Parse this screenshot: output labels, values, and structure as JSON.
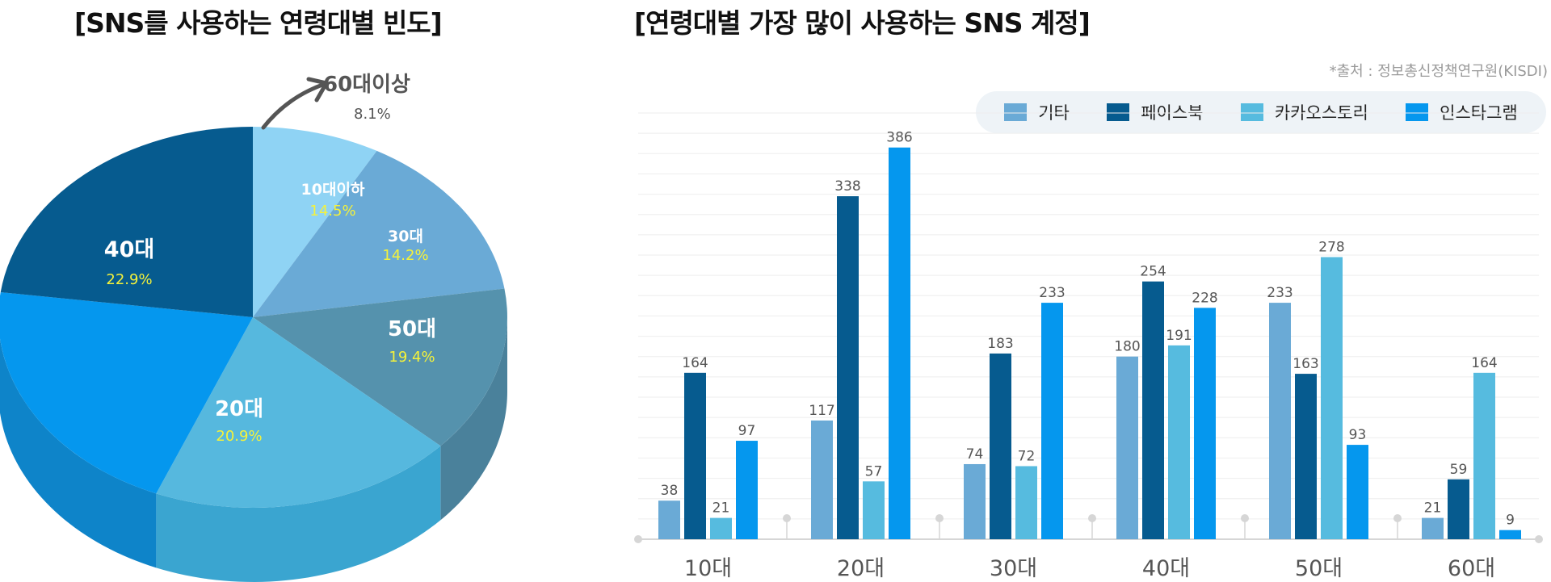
{
  "pie_title": "[SNS를 사용하는 연령대별 빈도]",
  "bar_title": "[연령대별 가장 많이 사용하는 SNS 계정]",
  "source": "*출처 : 정보총신정책연구원(KISDI)",
  "chart_data": [
    {
      "type": "pie",
      "title": "[SNS를 사용하는 연령대별 빈도]",
      "slices": [
        {
          "name": "60대이상",
          "pct_label": "8.1%",
          "value": 8.1,
          "color": "#8fd3f4",
          "side": "#7ac0e2"
        },
        {
          "name": "10대이하",
          "pct_label": "14.5%",
          "value": 14.5,
          "color": "#6aaad6",
          "side": "#5a98c4"
        },
        {
          "name": "30대",
          "pct_label": "14.2%",
          "value": 14.2,
          "color": "#5592ad",
          "side": "#4a819b"
        },
        {
          "name": "50대",
          "pct_label": "19.4%",
          "value": 19.4,
          "color": "#56b8de",
          "side": "#3aa5d0"
        },
        {
          "name": "20대",
          "pct_label": "20.9%",
          "value": 20.9,
          "color": "#0597ee",
          "side": "#0e84c9"
        },
        {
          "name": "40대",
          "pct_label": "22.9%",
          "value": 22.9,
          "color": "#065b8f",
          "side": "#034a76"
        }
      ]
    },
    {
      "type": "bar",
      "title": "[연령대별 가장 많이 사용하는 SNS 계정]",
      "categories": [
        "10대",
        "20대",
        "30대",
        "40대",
        "50대",
        "60대"
      ],
      "series": [
        {
          "name": "기타",
          "color": "#6aaad6",
          "values": [
            38,
            117,
            74,
            180,
            233,
            21
          ]
        },
        {
          "name": "페이스북",
          "color": "#065b8f",
          "values": [
            164,
            338,
            183,
            254,
            163,
            59
          ]
        },
        {
          "name": "카카오스토리",
          "color": "#56bbdf",
          "values": [
            21,
            57,
            72,
            191,
            278,
            164
          ]
        },
        {
          "name": "인스타그램",
          "color": "#0597ee",
          "values": [
            97,
            386,
            233,
            228,
            93,
            9
          ]
        }
      ],
      "ylim": [
        0,
        420
      ],
      "grid": true,
      "legend": "top-right"
    }
  ]
}
